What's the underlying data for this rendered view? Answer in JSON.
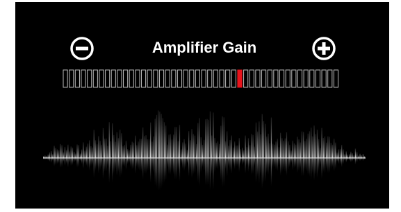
{
  "title": "Amplifier Gain",
  "gain_meter": {
    "segments": 46,
    "level": 29
  }
}
